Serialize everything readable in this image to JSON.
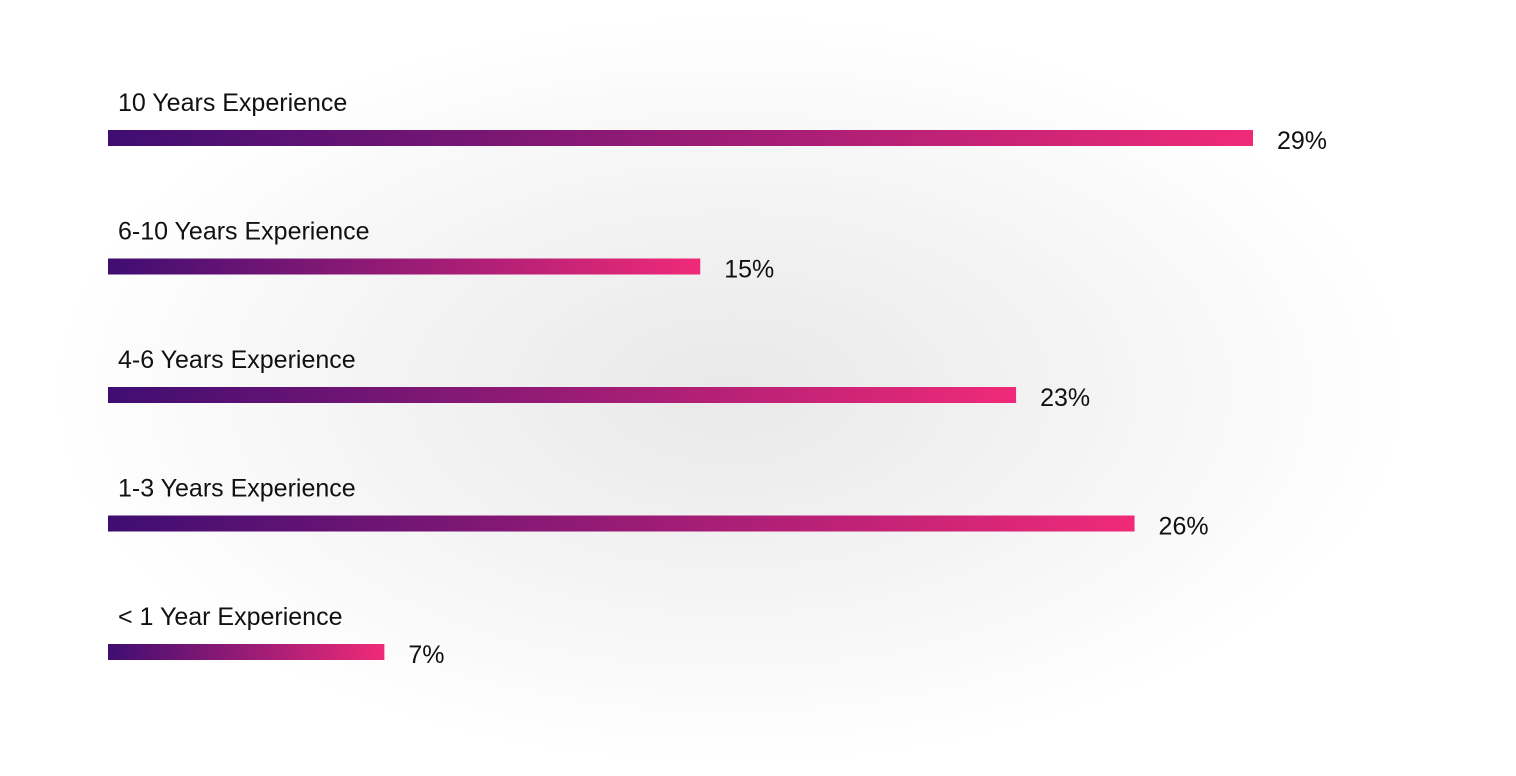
{
  "chart_data": {
    "type": "bar",
    "orientation": "horizontal",
    "categories": [
      "10 Years Experience",
      "6-10 Years Experience",
      "4-6 Years Experience",
      "1-3 Years Experience",
      "< 1 Year Experience"
    ],
    "values": [
      29,
      15,
      23,
      26,
      7
    ],
    "value_labels": [
      "29%",
      "15%",
      "23%",
      "26%",
      "7%"
    ],
    "unit": "%",
    "xlim": [
      0,
      29
    ],
    "grid": false,
    "legend": "none",
    "colors": {
      "gradient_start": "#3f0d72",
      "gradient_end": "#f02a78",
      "text": "#111111"
    }
  }
}
